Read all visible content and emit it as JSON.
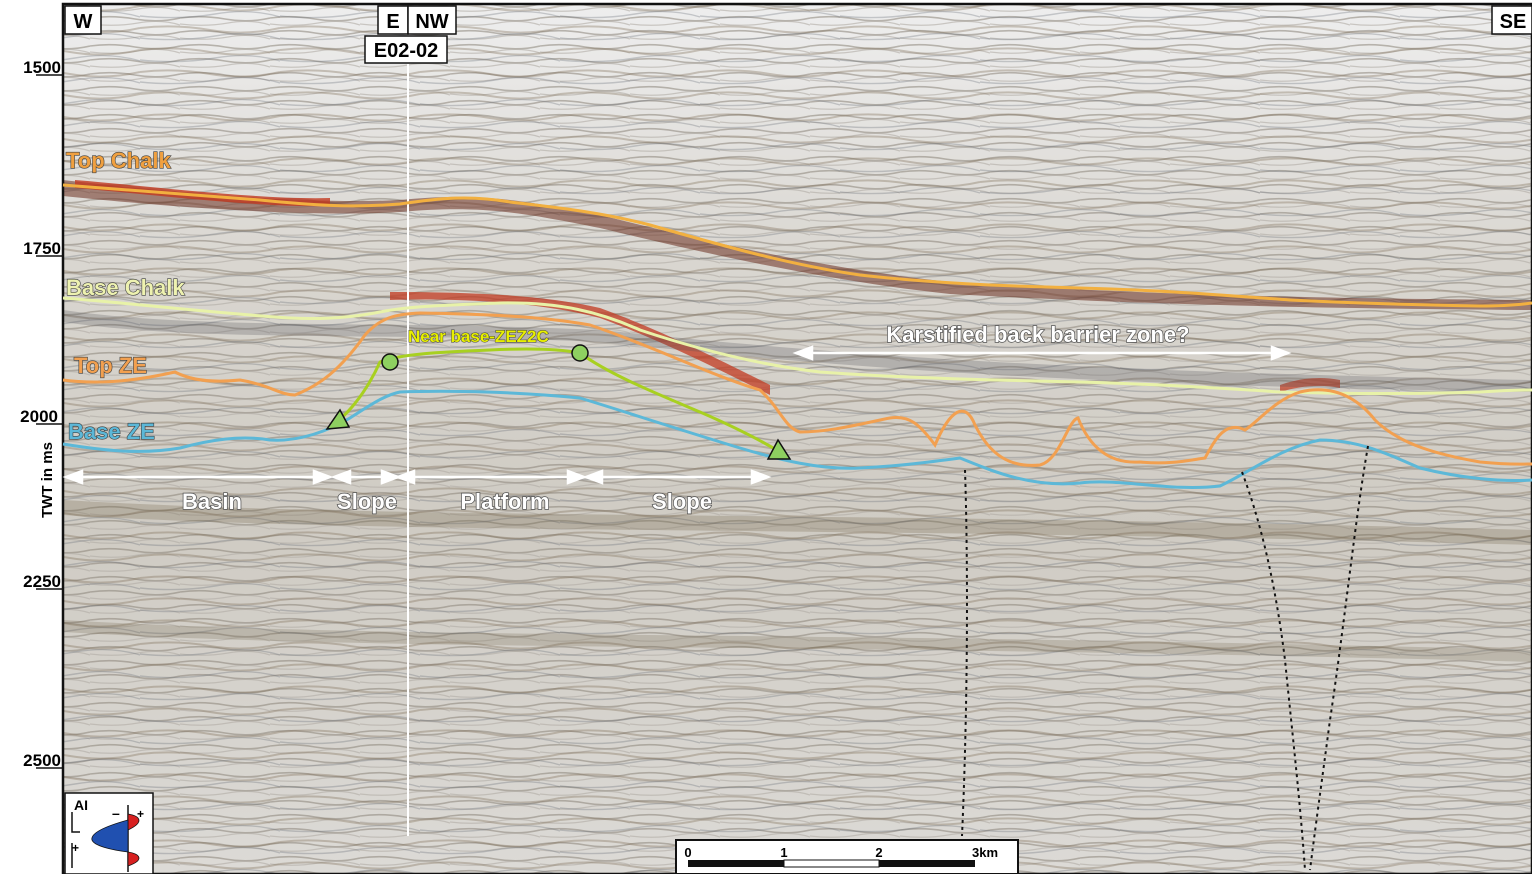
{
  "orientation": {
    "left": "W",
    "junction_e": "E",
    "junction_nw": "NW",
    "right": "SE",
    "well": "E02-02"
  },
  "y_axis": {
    "title": "TWT in ms",
    "ticks": [
      "1500",
      "1750",
      "2000",
      "2250",
      "2500"
    ]
  },
  "horizons": {
    "top_chalk": {
      "label": "Top Chalk",
      "color": "#f0a040"
    },
    "base_chalk": {
      "label": "Base Chalk",
      "color": "#e8f0a0"
    },
    "top_ze": {
      "label": "Top ZE",
      "color": "#f0a050"
    },
    "base_ze": {
      "label": "Base ZE",
      "color": "#50b8d8"
    },
    "near_base_zez2c": {
      "label": "Near base-ZEZ2C",
      "color": "#d8f000"
    }
  },
  "zones": {
    "basin": "Basin",
    "slope_1": "Slope",
    "platform": "Platform",
    "slope_2": "Slope",
    "karst": "Karstified back barrier zone?"
  },
  "scale_bar": {
    "labels": [
      "0",
      "1",
      "2",
      "3km"
    ]
  },
  "polarity_legend": {
    "label": "AI",
    "minus": "–",
    "plus": "+"
  }
}
